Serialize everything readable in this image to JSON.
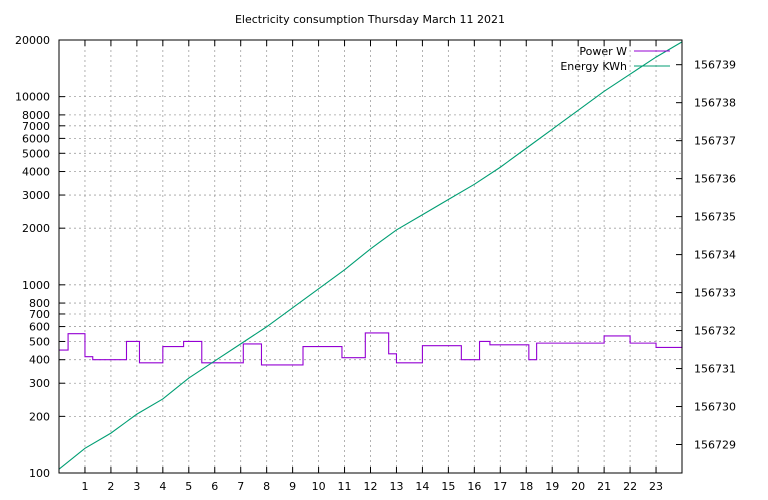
{
  "chart_data": {
    "type": "line",
    "title": "Electricity consumption Thursday March 11 2021",
    "x": {
      "range": [
        0,
        24
      ],
      "ticks": [
        1,
        2,
        3,
        4,
        5,
        6,
        7,
        8,
        9,
        10,
        11,
        12,
        13,
        14,
        15,
        16,
        17,
        18,
        19,
        20,
        21,
        22,
        23
      ],
      "tick_labels": [
        "1",
        "2",
        "3",
        "4",
        "5",
        "6",
        "7",
        "8",
        "9",
        "10",
        "11",
        "12",
        "13",
        "14",
        "15",
        "16",
        "17",
        "18",
        "19",
        "20",
        "21",
        "22",
        "23"
      ]
    },
    "y_left": {
      "scale": "log",
      "range": [
        100,
        20000
      ],
      "ticks": [
        100,
        200,
        300,
        400,
        500,
        600,
        700,
        800,
        1000,
        2000,
        3000,
        4000,
        5000,
        6000,
        7000,
        8000,
        10000,
        20000
      ],
      "tick_labels": [
        "100",
        "200",
        "300",
        "400",
        "500",
        "600",
        "700",
        "800",
        "1000",
        "2000",
        "3000",
        "4000",
        "5000",
        "6000",
        "7000",
        "8000",
        "10000",
        "20000"
      ]
    },
    "y_right": {
      "scale": "linear",
      "range": [
        156728.25,
        156739.65
      ],
      "ticks": [
        156729,
        156730,
        156731,
        156732,
        156733,
        156734,
        156735,
        156736,
        156737,
        156738,
        156739
      ],
      "tick_labels": [
        "156729",
        "156730",
        "156731",
        "156732",
        "156733",
        "156734",
        "156735",
        "156736",
        "156737",
        "156738",
        "156739"
      ]
    },
    "grid": true,
    "legend_position": "top-right",
    "series": [
      {
        "name": "Power W",
        "axis": "left",
        "color": "#9400d3",
        "style": "step",
        "points": [
          [
            0.0,
            450
          ],
          [
            0.35,
            550
          ],
          [
            1.0,
            415
          ],
          [
            1.3,
            400
          ],
          [
            2.6,
            500
          ],
          [
            3.1,
            385
          ],
          [
            4.0,
            470
          ],
          [
            4.8,
            500
          ],
          [
            5.5,
            385
          ],
          [
            7.1,
            485
          ],
          [
            7.8,
            375
          ],
          [
            9.4,
            470
          ],
          [
            10.9,
            410
          ],
          [
            11.8,
            555
          ],
          [
            12.7,
            430
          ],
          [
            13.0,
            385
          ],
          [
            14.0,
            475
          ],
          [
            15.5,
            400
          ],
          [
            16.2,
            500
          ],
          [
            16.6,
            480
          ],
          [
            18.1,
            400
          ],
          [
            18.4,
            490
          ],
          [
            21.0,
            535
          ],
          [
            22.0,
            490
          ],
          [
            23.0,
            465
          ],
          [
            24.0,
            500
          ]
        ]
      },
      {
        "name": "Energy KWh",
        "axis": "right",
        "color": "#009e73",
        "style": "line",
        "points": [
          [
            0,
            156728.35
          ],
          [
            1,
            156728.9
          ],
          [
            2,
            156729.3
          ],
          [
            3,
            156729.8
          ],
          [
            4,
            156730.2
          ],
          [
            5,
            156730.75
          ],
          [
            6,
            156731.2
          ],
          [
            7,
            156731.65
          ],
          [
            8,
            156732.1
          ],
          [
            9,
            156732.6
          ],
          [
            10,
            156733.1
          ],
          [
            11,
            156733.6
          ],
          [
            12,
            156734.15
          ],
          [
            13,
            156734.65
          ],
          [
            14,
            156735.05
          ],
          [
            15,
            156735.45
          ],
          [
            16,
            156735.85
          ],
          [
            17,
            156736.3
          ],
          [
            18,
            156736.8
          ],
          [
            19,
            156737.3
          ],
          [
            20,
            156737.8
          ],
          [
            21,
            156738.3
          ],
          [
            22,
            156738.75
          ],
          [
            23,
            156739.2
          ],
          [
            24,
            156739.6
          ]
        ]
      }
    ]
  }
}
